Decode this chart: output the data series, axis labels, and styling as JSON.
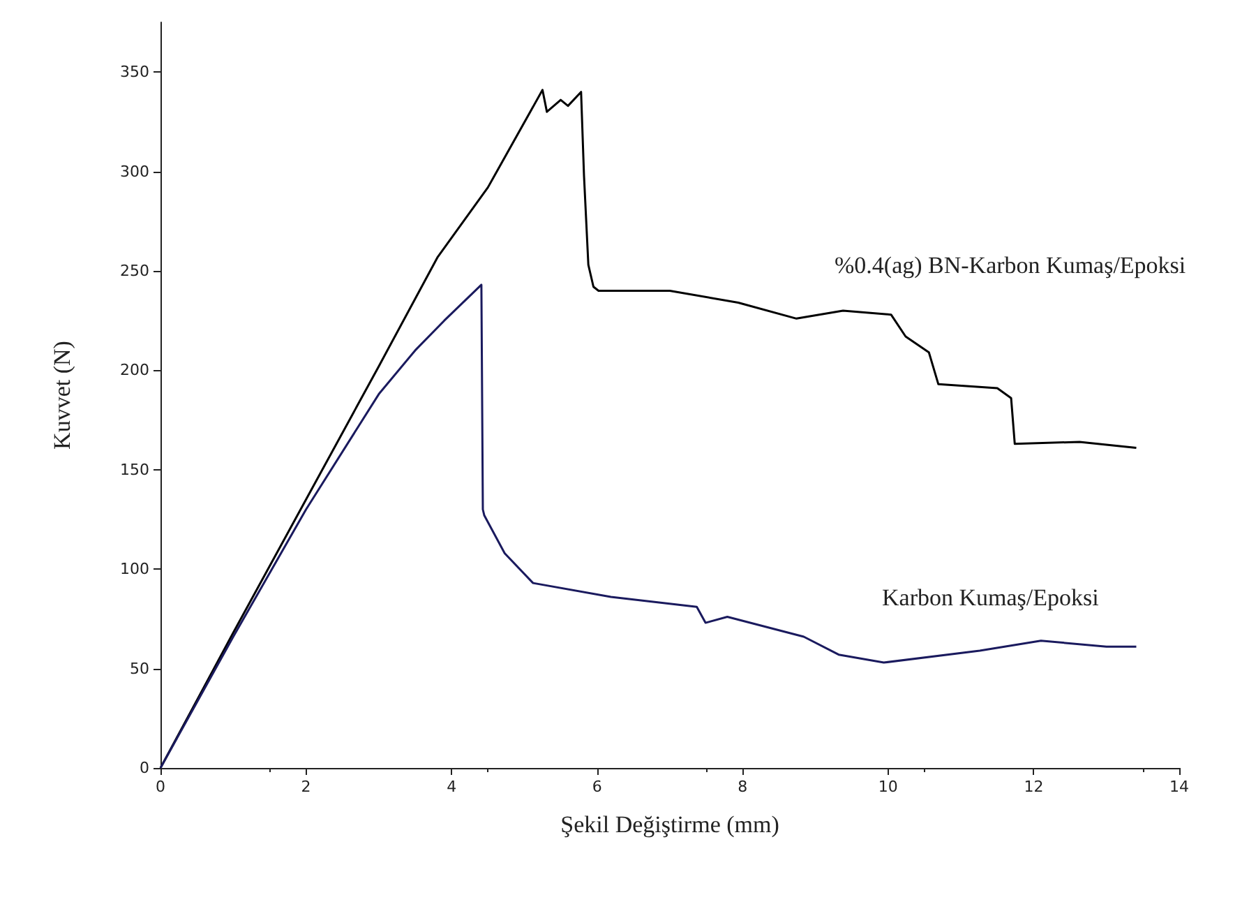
{
  "chart_data": {
    "type": "line",
    "xlabel": "Şekil Değiştirme (mm)",
    "ylabel": "Kuvvet (N)",
    "xlim": [
      0,
      14
    ],
    "xticks": [
      0,
      2,
      4,
      6,
      8,
      10,
      12,
      14
    ],
    "ylim": [
      0,
      375
    ],
    "yticks": [
      0,
      50,
      100,
      150,
      200,
      250,
      300,
      350
    ],
    "grid": false,
    "marker": "none",
    "line_style": "solid",
    "series": [
      {
        "color": "#000000",
        "x": [
          0,
          1,
          2,
          3,
          3.81,
          4.5,
          5.25,
          5.31,
          5.5,
          5.6,
          5.78,
          5.82,
          5.88,
          5.95,
          6.02,
          7.0,
          7.94,
          8.74,
          9.38,
          10.04,
          10.24,
          10.56,
          10.69,
          11.5,
          11.69,
          11.74,
          12.63,
          13.41
        ],
        "values": [
          0,
          68,
          135,
          202,
          257,
          292,
          341,
          330,
          336,
          333,
          340,
          298,
          253,
          242,
          240,
          240,
          234,
          226,
          230,
          228,
          217,
          209,
          193,
          191,
          186,
          163,
          164,
          161
        ]
      },
      {
        "color": "#1a1a5e",
        "x": [
          0,
          1,
          2,
          3,
          3.5,
          3.9,
          4.41,
          4.43,
          4.45,
          4.73,
          5.12,
          6.19,
          7.37,
          7.49,
          7.79,
          8.84,
          9.32,
          9.94,
          11.26,
          12.1,
          13.0,
          13.41
        ],
        "values": [
          0,
          66,
          130,
          188,
          210,
          225,
          243,
          130,
          127,
          108,
          93,
          86,
          81,
          73,
          76,
          66,
          57,
          53,
          59,
          64,
          61,
          61
        ]
      }
    ],
    "annotations": [
      "%0.4(ag) BN-Karbon Kumaş/Epoksi",
      "Karbon Kumaş/Epoksi"
    ]
  }
}
